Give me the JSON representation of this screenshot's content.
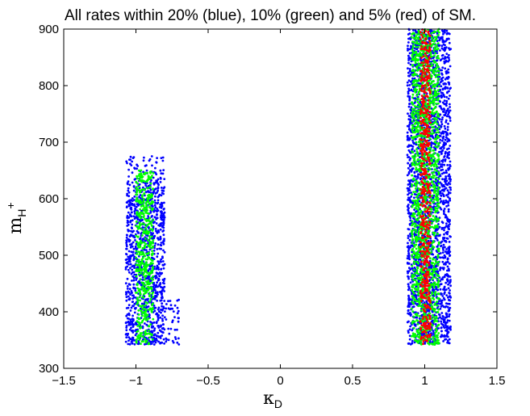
{
  "chart_data": {
    "type": "scatter",
    "title": "All rates within 20% (blue), 10% (green) and 5% (red) of SM.",
    "xlabel": {
      "symbol": "κ",
      "subscript": "D"
    },
    "ylabel": {
      "symbol": "m",
      "subscript": "H",
      "superscript": "+"
    },
    "xlim": [
      -1.5,
      1.5
    ],
    "ylim": [
      300,
      900
    ],
    "xticks": [
      -1.5,
      -1,
      -0.5,
      0,
      0.5,
      1,
      1.5
    ],
    "xtick_labels": [
      "−1.5",
      "−1",
      "−0.5",
      "0",
      "0.5",
      "1",
      "1.5"
    ],
    "yticks": [
      300,
      400,
      500,
      600,
      700,
      800,
      900
    ],
    "ytick_labels": [
      "300",
      "400",
      "500",
      "600",
      "700",
      "800",
      "900"
    ],
    "grid": false,
    "legend": "none",
    "series": [
      {
        "color": "#0000ff",
        "regions": [
          {
            "x_min": -1.07,
            "x_max": -0.8,
            "y_min": 342,
            "y_max": 630,
            "x_outlier_max": -0.7,
            "y_outlier_max": 675
          },
          {
            "x_min": 0.88,
            "x_max": 1.18,
            "y_min": 342,
            "y_max": 900
          }
        ]
      },
      {
        "color": "#00ff00",
        "regions": [
          {
            "x_min": -1.0,
            "x_max": -0.88,
            "y_min": 342,
            "y_max": 650
          },
          {
            "x_min": 0.91,
            "x_max": 1.1,
            "y_min": 342,
            "y_max": 900
          }
        ]
      },
      {
        "color": "#ff0000",
        "regions": [
          {
            "x_min": 0.97,
            "x_max": 1.04,
            "y_min": 342,
            "y_max": 900
          }
        ]
      }
    ]
  }
}
